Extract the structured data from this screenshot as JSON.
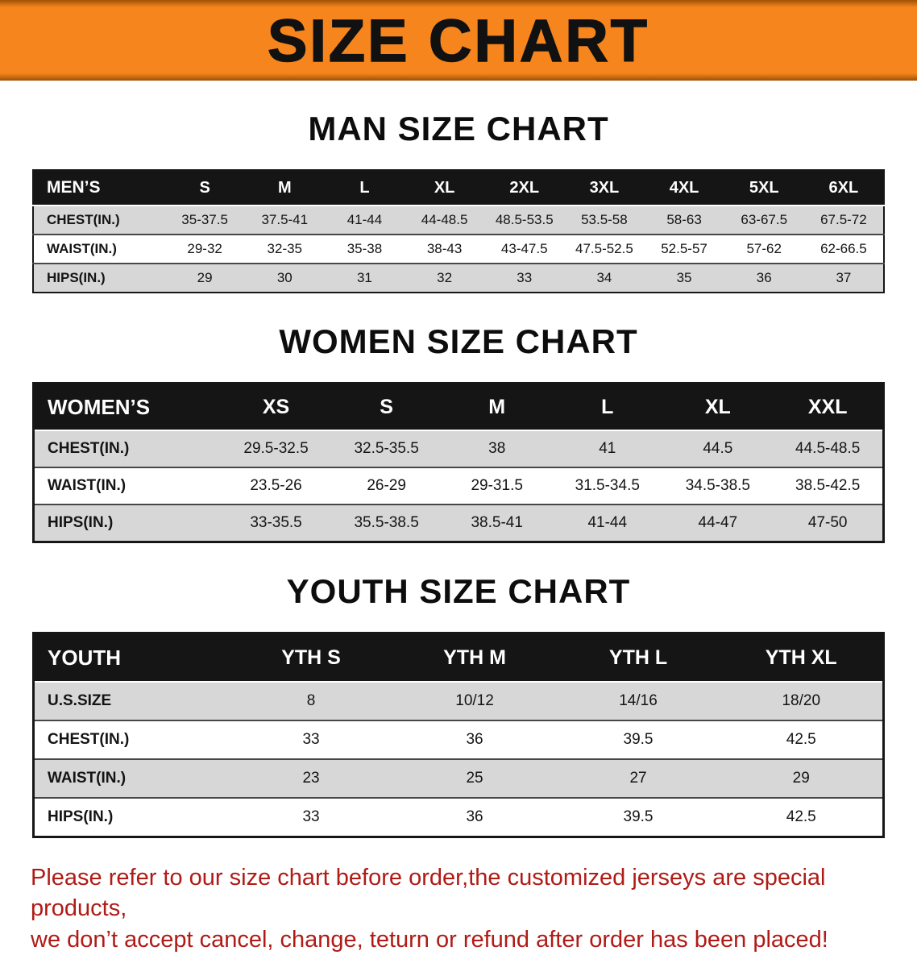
{
  "banner": {
    "title": "SIZE CHART"
  },
  "sections": [
    {
      "name": "men-size-chart",
      "heading": "MAN SIZE CHART",
      "table": {
        "header": [
          "MEN’S",
          "S",
          "M",
          "L",
          "XL",
          "2XL",
          "3XL",
          "4XL",
          "5XL",
          "6XL"
        ],
        "rows": [
          [
            "CHEST(IN.)",
            "35-37.5",
            "37.5-41",
            "41-44",
            "44-48.5",
            "48.5-53.5",
            "53.5-58",
            "58-63",
            "63-67.5",
            "67.5-72"
          ],
          [
            "WAIST(IN.)",
            "29-32",
            "32-35",
            "35-38",
            "38-43",
            "43-47.5",
            "47.5-52.5",
            "52.5-57",
            "57-62",
            "62-66.5"
          ],
          [
            "HIPS(IN.)",
            "29",
            "30",
            "31",
            "32",
            "33",
            "34",
            "35",
            "36",
            "37"
          ]
        ]
      }
    },
    {
      "name": "women-size-chart",
      "heading": "WOMEN SIZE CHART",
      "table": {
        "header": [
          "WOMEN’S",
          "XS",
          "S",
          "M",
          "L",
          "XL",
          "XXL"
        ],
        "rows": [
          [
            "CHEST(IN.)",
            "29.5-32.5",
            "32.5-35.5",
            "38",
            "41",
            "44.5",
            "44.5-48.5"
          ],
          [
            "WAIST(IN.)",
            "23.5-26",
            "26-29",
            "29-31.5",
            "31.5-34.5",
            "34.5-38.5",
            "38.5-42.5"
          ],
          [
            "HIPS(IN.)",
            "33-35.5",
            "35.5-38.5",
            "38.5-41",
            "41-44",
            "44-47",
            "47-50"
          ]
        ]
      }
    },
    {
      "name": "youth-size-chart",
      "heading": "YOUTH SIZE CHART",
      "table": {
        "header": [
          "YOUTH",
          "YTH S",
          "YTH M",
          "YTH L",
          "YTH XL"
        ],
        "rows": [
          [
            "U.S.SIZE",
            "8",
            "10/12",
            "14/16",
            "18/20"
          ],
          [
            "CHEST(IN.)",
            "33",
            "36",
            "39.5",
            "42.5"
          ],
          [
            "WAIST(IN.)",
            "23",
            "25",
            "27",
            "29"
          ],
          [
            "HIPS(IN.)",
            "33",
            "36",
            "39.5",
            "42.5"
          ]
        ]
      }
    }
  ],
  "footnote": {
    "line1": "Please refer to our size chart before order,the customized jerseys are special products,",
    "line2": "we don’t accept cancel, change, teturn or refund after order has been placed!"
  },
  "colors": {
    "banner-orange": "#f5851c",
    "header-black": "#151515",
    "stripe-gray": "#d7d7d7",
    "note-red": "#b01b16"
  }
}
